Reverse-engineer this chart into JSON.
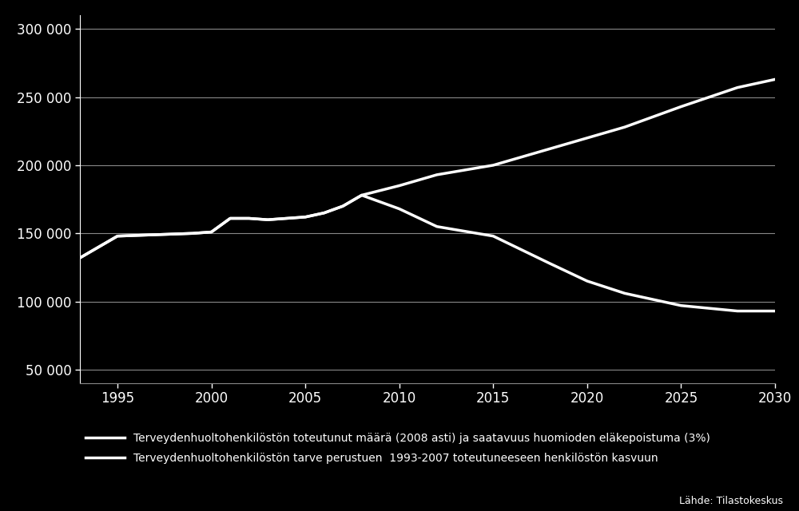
{
  "background_color": "#000000",
  "text_color": "#ffffff",
  "line_color": "#ffffff",
  "grid_color": "#888888",
  "line1_label": "Terveydenhuoltohenkilöstön toteutunut määrä (2008 asti) ja saatavuus huomioden eläkepoistuma (3%)",
  "line2_label": "Terveydenhuoltohenkilöstön tarve perustuen  1993-2007 toteutuneeseen henkilöstön kasvuun",
  "source_text": "Lähde: Tilastokeskus",
  "line1_x": [
    1993,
    1994,
    1995,
    1997,
    1999,
    2000,
    2001,
    2002,
    2003,
    2004,
    2005,
    2006,
    2007,
    2008,
    2010,
    2012,
    2015,
    2018,
    2020,
    2022,
    2025,
    2028,
    2030
  ],
  "line1_y": [
    132000,
    140000,
    148000,
    149000,
    150000,
    151000,
    161000,
    161000,
    160000,
    161000,
    162000,
    165000,
    170000,
    178000,
    185000,
    193000,
    200000,
    212000,
    220000,
    228000,
    243000,
    257000,
    263000
  ],
  "line2_x": [
    1993,
    1994,
    1995,
    1997,
    1999,
    2000,
    2001,
    2002,
    2003,
    2004,
    2005,
    2006,
    2007,
    2008,
    2010,
    2012,
    2015,
    2018,
    2020,
    2022,
    2025,
    2028,
    2030
  ],
  "line2_y": [
    132000,
    140000,
    148000,
    149000,
    150000,
    151000,
    161000,
    161000,
    160000,
    161000,
    162000,
    165000,
    170000,
    178000,
    168000,
    155000,
    148000,
    128000,
    115000,
    106000,
    97000,
    93000,
    93000
  ],
  "xlim": [
    1993,
    2030
  ],
  "ylim": [
    40000,
    310000
  ],
  "xticks": [
    1995,
    2000,
    2005,
    2010,
    2015,
    2020,
    2025,
    2030
  ],
  "yticks": [
    50000,
    100000,
    150000,
    200000,
    250000,
    300000
  ],
  "ytick_labels": [
    "50 000",
    "100 000",
    "150 000",
    "200 000",
    "250 000",
    "300 000"
  ],
  "linewidth": 2.5,
  "figsize": [
    10.0,
    6.4
  ],
  "dpi": 100
}
